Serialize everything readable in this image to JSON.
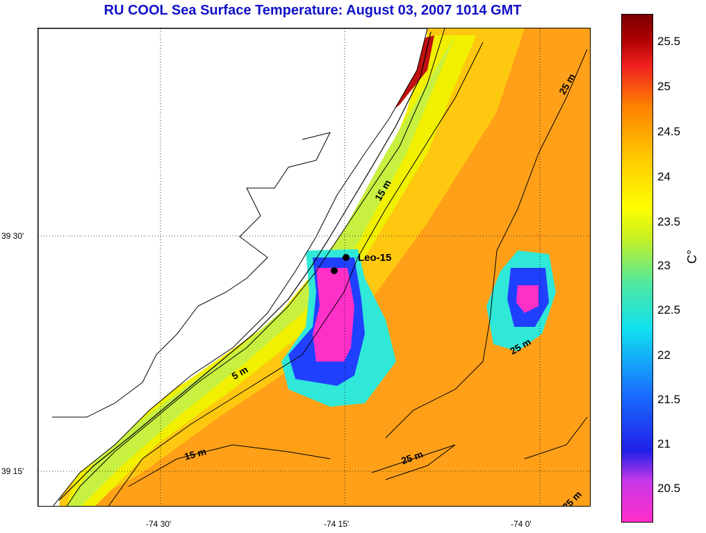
{
  "title": "RU COOL  Sea Surface Temperature:  August 03, 2007 1014 GMT",
  "map": {
    "lat_labels": [
      "39 30'",
      "39 15'"
    ],
    "lon_labels": [
      "-74 30'",
      "-74 15'",
      "-74 0'"
    ],
    "contour_labels": [
      "25 m",
      "15 m",
      "5 m",
      "25 m",
      "15 m",
      "25 m",
      "25 m"
    ],
    "station": {
      "name": "Leo-15"
    }
  },
  "colorbar": {
    "unit": "C°",
    "ticks": [
      "25.5",
      "25",
      "24.5",
      "24",
      "23.5",
      "23",
      "22.5",
      "22",
      "21.5",
      "21",
      "20.5"
    ],
    "colors": {
      "min": "#ff2dc8",
      "low": "#2020e8",
      "mid": "#ffff00",
      "high": "#7a0000"
    }
  }
}
